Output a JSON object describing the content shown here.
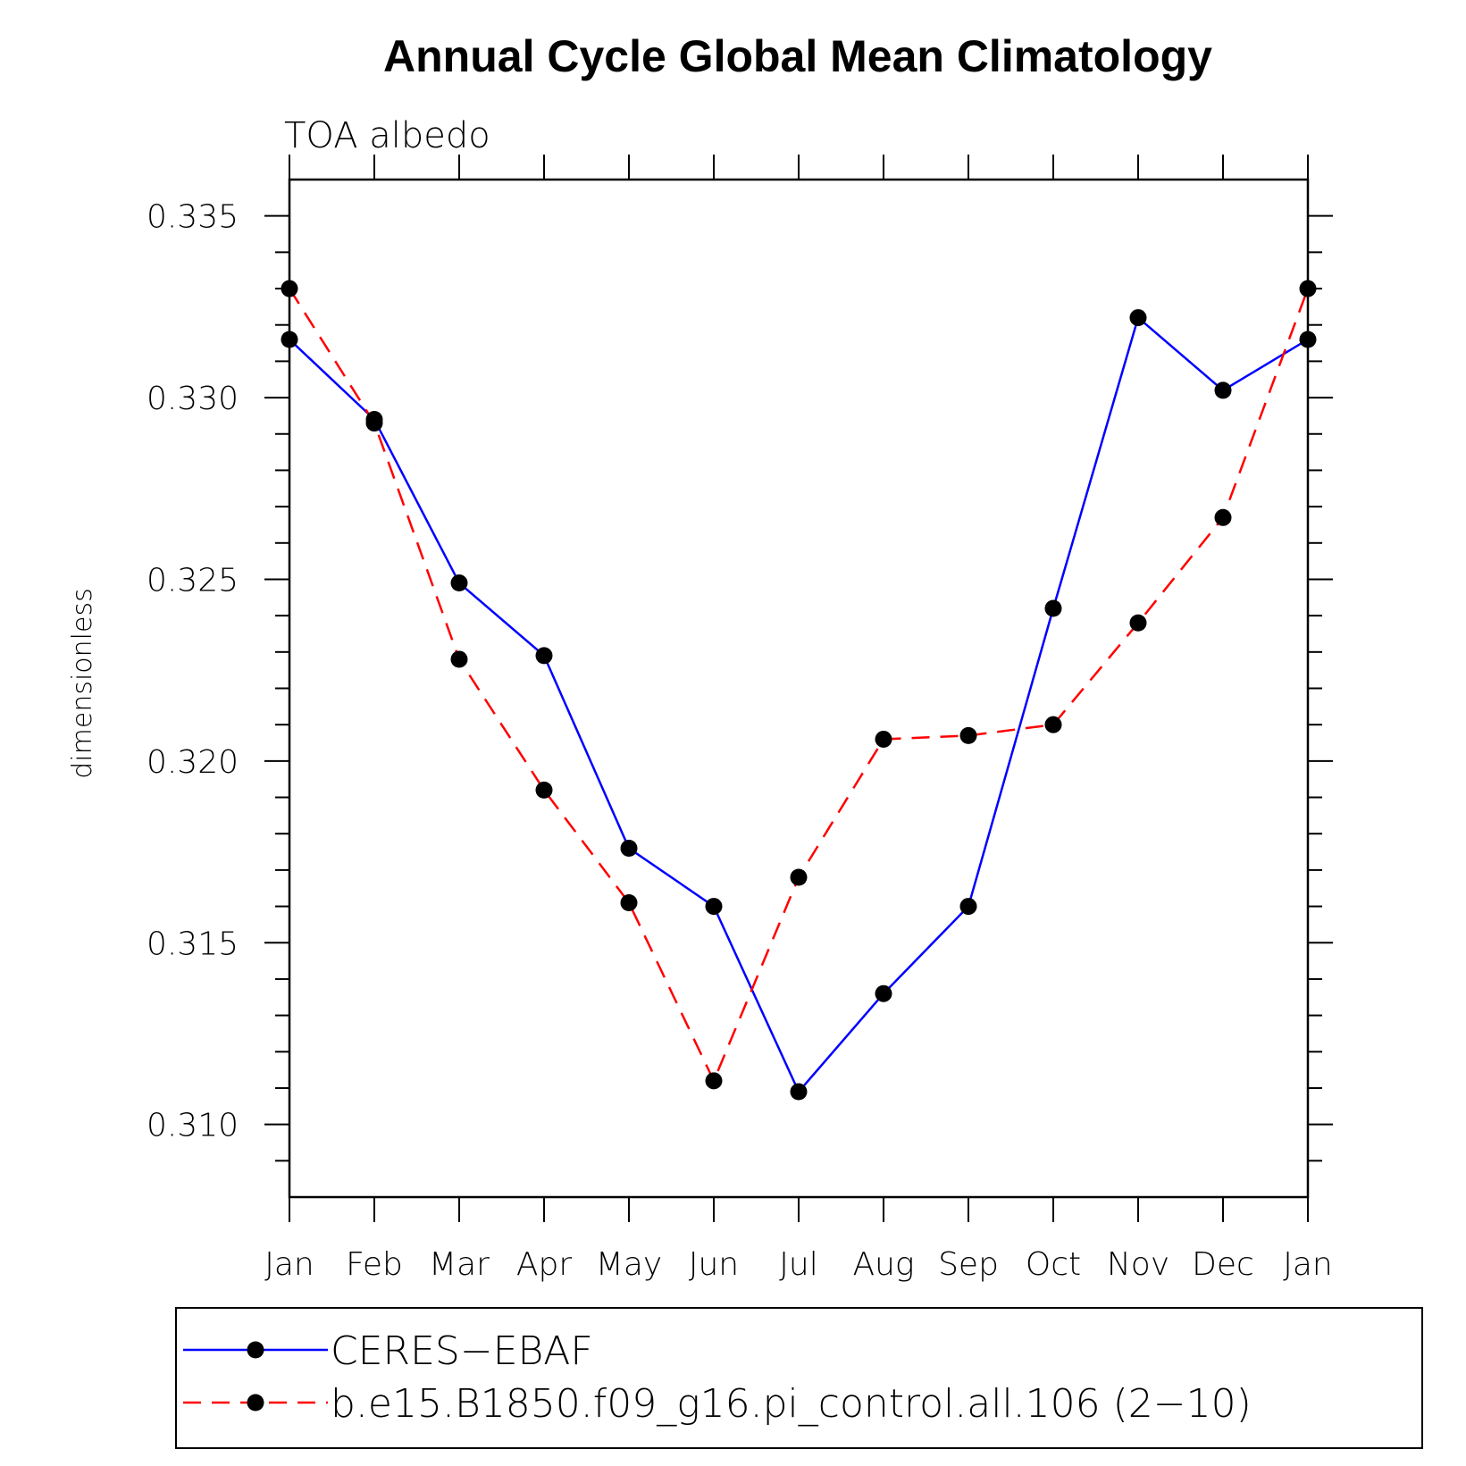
{
  "chart_data": {
    "type": "line",
    "title": "Annual Cycle Global Mean Climatology",
    "subtitle": "TOA albedo",
    "ylabel": "dimensionless",
    "xlabel": "",
    "categories": [
      "Jan",
      "Feb",
      "Mar",
      "Apr",
      "May",
      "Jun",
      "Jul",
      "Aug",
      "Sep",
      "Oct",
      "Nov",
      "Dec",
      "Jan"
    ],
    "ylim": [
      0.308,
      0.336
    ],
    "yticks": [
      0.31,
      0.315,
      0.32,
      0.325,
      0.33,
      0.335
    ],
    "ytick_labels": [
      "0.310",
      "0.315",
      "0.320",
      "0.325",
      "0.330",
      "0.335"
    ],
    "series": [
      {
        "name": "CERES-EBAF",
        "color": "#0000ff",
        "dash": "solid",
        "values": [
          0.3316,
          0.3294,
          0.3249,
          0.3229,
          0.3176,
          0.316,
          0.3109,
          0.3136,
          0.316,
          0.3242,
          0.3322,
          0.3302,
          0.3316
        ]
      },
      {
        "name": "b.e15.B1850.f09_g16.pi_control.all.106 (2-10)",
        "color": "#ff0000",
        "dash": "dashed",
        "values": [
          0.333,
          0.3293,
          0.3228,
          0.3192,
          0.3161,
          0.3112,
          0.3168,
          0.3206,
          0.3207,
          0.321,
          0.3238,
          0.3267,
          0.333
        ]
      }
    ],
    "marker_color": "#000000",
    "legend": {
      "position": "bottom",
      "entries": [
        "CERES−EBAF",
        "b.e15.B1850.f09_g16.pi_control.all.106 (2−10)"
      ]
    },
    "grid": false
  }
}
